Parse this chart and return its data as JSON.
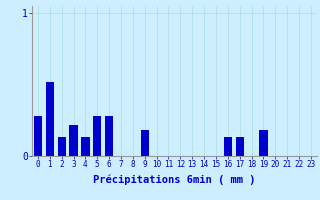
{
  "xlabel": "Précipitations 6min ( mm )",
  "background_color": "#cceeff",
  "bar_color": "#0000cc",
  "ylim": [
    0,
    1.05
  ],
  "xlim": [
    -0.5,
    23.5
  ],
  "yticks": [
    0,
    1
  ],
  "ytick_labels": [
    "0",
    "1"
  ],
  "xtick_labels": [
    "0",
    "1",
    "2",
    "3",
    "4",
    "5",
    "6",
    "7",
    "8",
    "9",
    "10",
    "11",
    "12",
    "13",
    "14",
    "15",
    "16",
    "17",
    "18",
    "19",
    "20",
    "21",
    "22",
    "23"
  ],
  "values": [
    0.28,
    0.52,
    0.13,
    0.22,
    0.13,
    0.28,
    0.28,
    0.0,
    0.0,
    0.18,
    0.0,
    0.0,
    0.0,
    0.0,
    0.0,
    0.0,
    0.13,
    0.13,
    0.0,
    0.18,
    0.0,
    0.0,
    0.0,
    0.0
  ],
  "grid_color": "#aadddd",
  "tick_color": "#0000bb",
  "label_color": "#0000cc",
  "bar_width": 0.7,
  "xlabel_fontsize": 7.5,
  "tick_fontsize": 5.5,
  "ytick_fontsize": 7.0
}
